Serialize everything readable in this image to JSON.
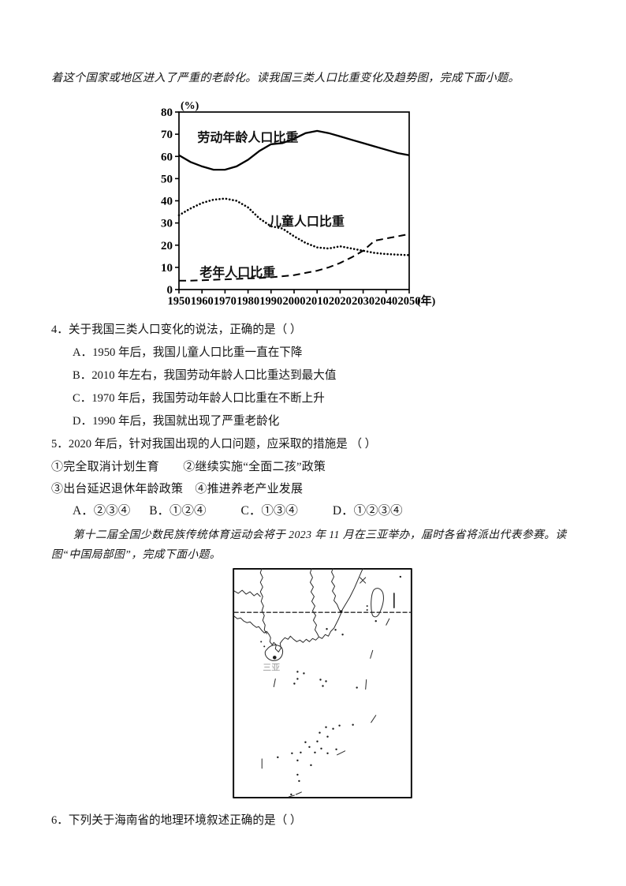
{
  "intro": {
    "text": "着这个国家或地区进入了严重的老龄化。读我国三类人口比重变化及趋势图，完成下面小题。"
  },
  "chart_data": {
    "type": "line",
    "title": "",
    "ylabel": "(%)",
    "xlabel": "(年)",
    "ylim": [
      0,
      80
    ],
    "xlim": [
      1950,
      2050
    ],
    "yticks": [
      0,
      10,
      20,
      30,
      40,
      50,
      60,
      70,
      80
    ],
    "xticks": [
      1950,
      1960,
      1970,
      1980,
      1990,
      2000,
      2010,
      2020,
      2030,
      2040,
      2050
    ],
    "grid": false,
    "legend_position": "inline-labels",
    "x": [
      1950,
      1955,
      1960,
      1965,
      1970,
      1975,
      1980,
      1985,
      1990,
      1995,
      2000,
      2005,
      2010,
      2015,
      2020,
      2025,
      2030,
      2035,
      2040,
      2045,
      2050
    ],
    "series": [
      {
        "name": "劳动年龄人口比重",
        "line_style": "solid",
        "values": [
          60.5,
          57.5,
          55.5,
          54,
          54,
          55.5,
          58.5,
          62.5,
          65.5,
          66,
          68,
          70.5,
          71.5,
          70.5,
          69,
          67.5,
          66,
          64.5,
          63,
          61.5,
          60.5
        ],
        "label_year": 1958,
        "label_pct": 68.5
      },
      {
        "name": "儿童人口比重",
        "line_style": "dotted",
        "values": [
          33.5,
          36.5,
          39,
          40.5,
          41,
          40,
          37,
          32,
          28.5,
          27.5,
          24,
          21,
          19,
          18.5,
          19.5,
          18.5,
          17.5,
          16.5,
          16,
          15.7,
          15.5
        ],
        "label_year": 1989,
        "label_pct": 30.5
      },
      {
        "name": "老年人口比重",
        "line_style": "dashed",
        "values": [
          4,
          4,
          4.2,
          4.4,
          4.6,
          4.8,
          5,
          5.2,
          5.5,
          6,
          6.5,
          7.5,
          8.5,
          10,
          12,
          14.5,
          17.5,
          22,
          23,
          24,
          25
        ],
        "label_year": 1959,
        "label_pct": 7.6
      }
    ]
  },
  "questions": {
    "q4": {
      "stem": "4．关于我国三类人口变化的说法，正确的是（ ）",
      "options": [
        "A．1950 年后，我国儿童人口比重一直在下降",
        "B．2010 年左右，我国劳动年龄人口比重达到最大值",
        "C．1970 年后，我国劳动年龄人口比重在不断上升",
        "D．1990 年后，我国就出现了严重老龄化"
      ]
    },
    "q5": {
      "stem": "5．2020 年后，针对我国出现的人口问题，应采取的措施是 （  ）",
      "items_line1": "①完全取消计划生育　　②继续实施“全面二孩”政策",
      "items_line2": "③出台延迟退休年龄政策　④推进养老产业发展",
      "options": [
        "A．②③④",
        "B．①②④",
        "C．①③④",
        "D．①②③④"
      ]
    },
    "q6": {
      "stem": "6．下列关于海南省的地理环境叙述正确的是（  ）"
    }
  },
  "passage2": {
    "text": "第十二届全国少数民族传统体育运动会将于 2023 年 11 月在三亚举办，届时各省将派出代表参赛。读图“中国局部图”，完成下面小题。"
  },
  "map": {
    "city_label": "三亚"
  }
}
